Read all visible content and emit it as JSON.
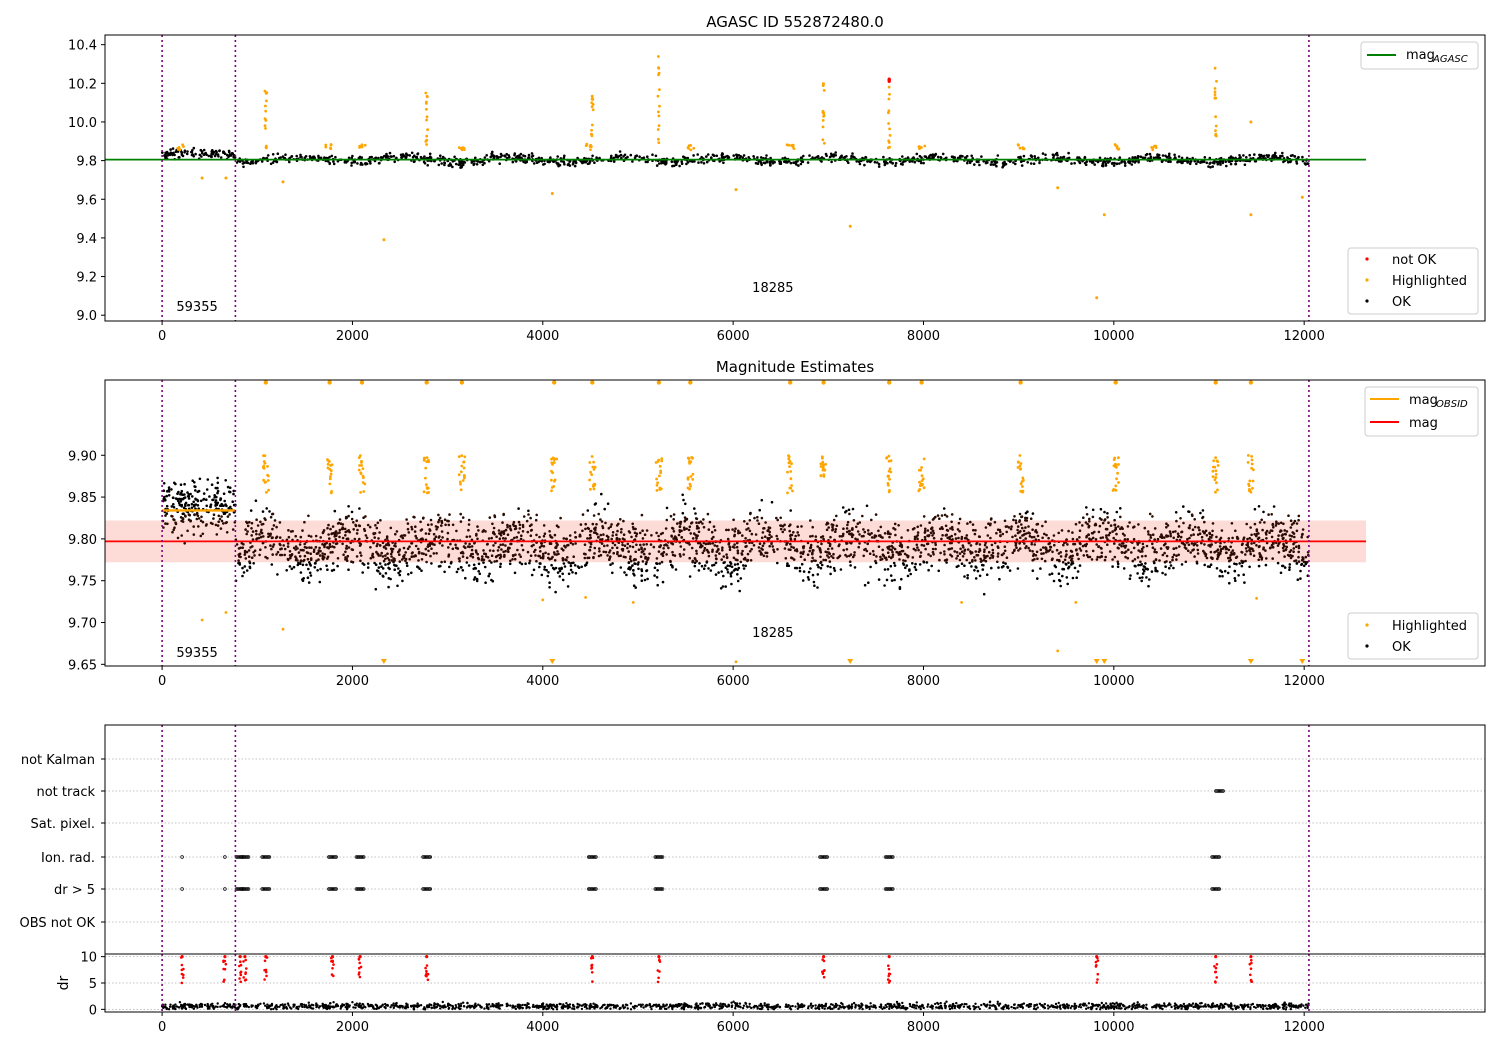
{
  "figure": {
    "title_top": "AGASC ID 552872480.0",
    "title_mid": "Magnitude Estimates"
  },
  "chart_data": [
    {
      "type": "scatter",
      "title": "AGASC ID 552872480.0",
      "xlim": [
        -600,
        13900
      ],
      "ylim": [
        8.97,
        10.45
      ],
      "x_ticks": [
        0,
        2000,
        4000,
        6000,
        8000,
        10000,
        12000
      ],
      "y_ticks": [
        9.0,
        9.2,
        9.4,
        9.6,
        9.8,
        10.0,
        10.2,
        10.4
      ],
      "y_tick_labels": [
        "9.0",
        "9.2",
        "9.4",
        "9.6",
        "9.8",
        "10.0",
        "10.2",
        "10.4"
      ],
      "obs_boundaries": [
        0,
        770,
        12050
      ],
      "obs_labels": [
        {
          "x": 150,
          "text": "59355"
        },
        {
          "x": 6200,
          "text": "18285"
        }
      ],
      "mag_agasc": 9.805,
      "legend_lines": [
        {
          "name": "mag",
          "sub": "AGASC",
          "color": "#008000"
        }
      ],
      "legend_points": [
        {
          "name": "not OK",
          "color": "#ff0000"
        },
        {
          "name": "Highlighted",
          "color": "#ffa500"
        },
        {
          "name": "OK",
          "color": "#000000"
        }
      ],
      "highlight_clusters": [
        {
          "x": 1090,
          "ymax": 10.18
        },
        {
          "x": 2780,
          "ymax": 10.16
        },
        {
          "x": 4520,
          "ymax": 10.14
        },
        {
          "x": 5220,
          "ymax": 10.35
        },
        {
          "x": 6950,
          "ymax": 10.22
        },
        {
          "x": 7640,
          "ymax": 10.22
        },
        {
          "x": 11070,
          "ymax": 10.32
        }
      ],
      "outliers": [
        {
          "x": 420,
          "y": 9.71
        },
        {
          "x": 670,
          "y": 9.71
        },
        {
          "x": 1270,
          "y": 9.69
        },
        {
          "x": 2330,
          "y": 9.39
        },
        {
          "x": 4100,
          "y": 9.63
        },
        {
          "x": 6030,
          "y": 9.65
        },
        {
          "x": 7230,
          "y": 9.46
        },
        {
          "x": 9410,
          "y": 9.66
        },
        {
          "x": 9820,
          "y": 9.09
        },
        {
          "x": 9900,
          "y": 9.52
        },
        {
          "x": 11440,
          "y": 9.52
        },
        {
          "x": 11440,
          "y": 10.0
        },
        {
          "x": 11980,
          "y": 9.61
        }
      ],
      "not_ok_cluster": {
        "x": 7640,
        "y": 10.21
      }
    },
    {
      "type": "scatter",
      "title": "Magnitude Estimates",
      "xlim": [
        -600,
        13900
      ],
      "ylim": [
        9.648,
        9.99
      ],
      "x_ticks": [
        0,
        2000,
        4000,
        6000,
        8000,
        10000,
        12000
      ],
      "y_ticks": [
        9.65,
        9.7,
        9.75,
        9.8,
        9.85,
        9.9
      ],
      "y_tick_labels": [
        "9.65",
        "9.70",
        "9.75",
        "9.80",
        "9.85",
        "9.90"
      ],
      "obs_labels": [
        {
          "x": 150,
          "text": "59355"
        },
        {
          "x": 6200,
          "text": "18285"
        }
      ],
      "mag": 9.797,
      "mag_band": [
        9.772,
        9.822
      ],
      "mag_obsid": [
        {
          "x0": 0,
          "x1": 770,
          "y": 9.834
        }
      ],
      "legend_lines": [
        {
          "name": "mag",
          "sub": "OBSID",
          "color": "#ffa500"
        },
        {
          "name": "mag",
          "sub": "",
          "color": "#ff0000"
        }
      ],
      "legend_points": [
        {
          "name": "Highlighted",
          "color": "#ffa500"
        },
        {
          "name": "OK",
          "color": "#000000"
        }
      ],
      "clipped_markers": [
        2330,
        4100,
        7230,
        9820,
        9900,
        11440,
        11980
      ]
    },
    {
      "type": "scatter",
      "xlim": [
        -600,
        13900
      ],
      "x_ticks": [
        0,
        2000,
        4000,
        6000,
        8000,
        10000,
        12000
      ],
      "flag_rows": [
        "not Kalman",
        "not track",
        "Sat. pixel.",
        "Ion. rad.",
        "dr > 5",
        "OBS not OK"
      ],
      "flag_events": {
        "not track": [
          11110
        ],
        "Ion. rad.": [
          210,
          660,
          820,
          870,
          1090,
          1790,
          2080,
          2780,
          4520,
          5220,
          6950,
          7640,
          11070
        ],
        "dr > 5": [
          210,
          660,
          820,
          870,
          1090,
          1790,
          2080,
          2780,
          4520,
          5220,
          6950,
          7640,
          11070
        ]
      },
      "dr_ylabel": "dr",
      "dr_ylim": [
        -0.5,
        10.5
      ],
      "dr_ticks": [
        0,
        5,
        10
      ],
      "dr_spikes": [
        210,
        660,
        820,
        870,
        1090,
        1790,
        2080,
        2780,
        4520,
        5220,
        6950,
        7640,
        9820,
        11070,
        11440
      ]
    }
  ]
}
